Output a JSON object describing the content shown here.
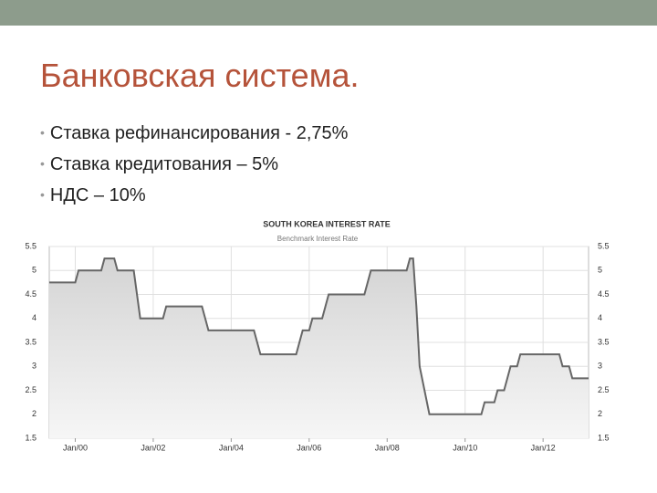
{
  "slide": {
    "title": "Банковская система.",
    "bullets": [
      "Ставка рефинансирования -  2,75%",
      "Ставка кредитования – 5%",
      "НДС – 10%"
    ]
  },
  "chart_data": {
    "type": "line",
    "title": "SOUTH KOREA INTEREST RATE",
    "subtitle": "Benchmark Interest Rate",
    "x": [
      "1999-05",
      "2000-01",
      "2000-02",
      "2000-09",
      "2000-10",
      "2001-01",
      "2001-02",
      "2001-07",
      "2001-08",
      "2001-09",
      "2002-04",
      "2002-05",
      "2003-04",
      "2003-05",
      "2003-06",
      "2004-08",
      "2004-09",
      "2004-10",
      "2005-09",
      "2005-10",
      "2005-11",
      "2006-01",
      "2006-02",
      "2006-05",
      "2006-06",
      "2006-07",
      "2007-06",
      "2007-07",
      "2007-08",
      "2008-07",
      "2008-08",
      "2008-09",
      "2008-10",
      "2008-11",
      "2009-02",
      "2010-06",
      "2010-07",
      "2010-10",
      "2010-11",
      "2011-01",
      "2011-02",
      "2011-03",
      "2011-05",
      "2011-06",
      "2012-06",
      "2012-07",
      "2012-09",
      "2012-10",
      "2013-03"
    ],
    "series": [
      {
        "name": "Benchmark Interest Rate",
        "color": "#666666",
        "values": [
          4.75,
          4.75,
          5,
          5,
          5.25,
          5.25,
          5,
          5,
          4.5,
          4,
          4,
          4.25,
          4.25,
          4,
          3.75,
          3.75,
          3.5,
          3.25,
          3.25,
          3.5,
          3.75,
          3.75,
          4,
          4,
          4.25,
          4.5,
          4.5,
          4.75,
          5,
          5,
          5.25,
          5.25,
          4.25,
          3,
          2,
          2,
          2.25,
          2.25,
          2.5,
          2.5,
          2.75,
          3,
          3,
          3.25,
          3.25,
          3,
          3,
          2.75,
          2.75
        ]
      }
    ],
    "xlim": [
      "1999-05",
      "2013-03"
    ],
    "xticks": [
      {
        "value": "2000-01",
        "label": "Jan/00"
      },
      {
        "value": "2002-01",
        "label": "Jan/02"
      },
      {
        "value": "2004-01",
        "label": "Jan/04"
      },
      {
        "value": "2006-01",
        "label": "Jan/06"
      },
      {
        "value": "2008-01",
        "label": "Jan/08"
      },
      {
        "value": "2010-01",
        "label": "Jan/10"
      },
      {
        "value": "2012-01",
        "label": "Jan/12"
      }
    ],
    "ylim": [
      1.5,
      5.5
    ],
    "yticks": [
      1.5,
      2,
      2.5,
      3,
      3.5,
      4,
      4.5,
      5,
      5.5
    ],
    "grid": true
  }
}
